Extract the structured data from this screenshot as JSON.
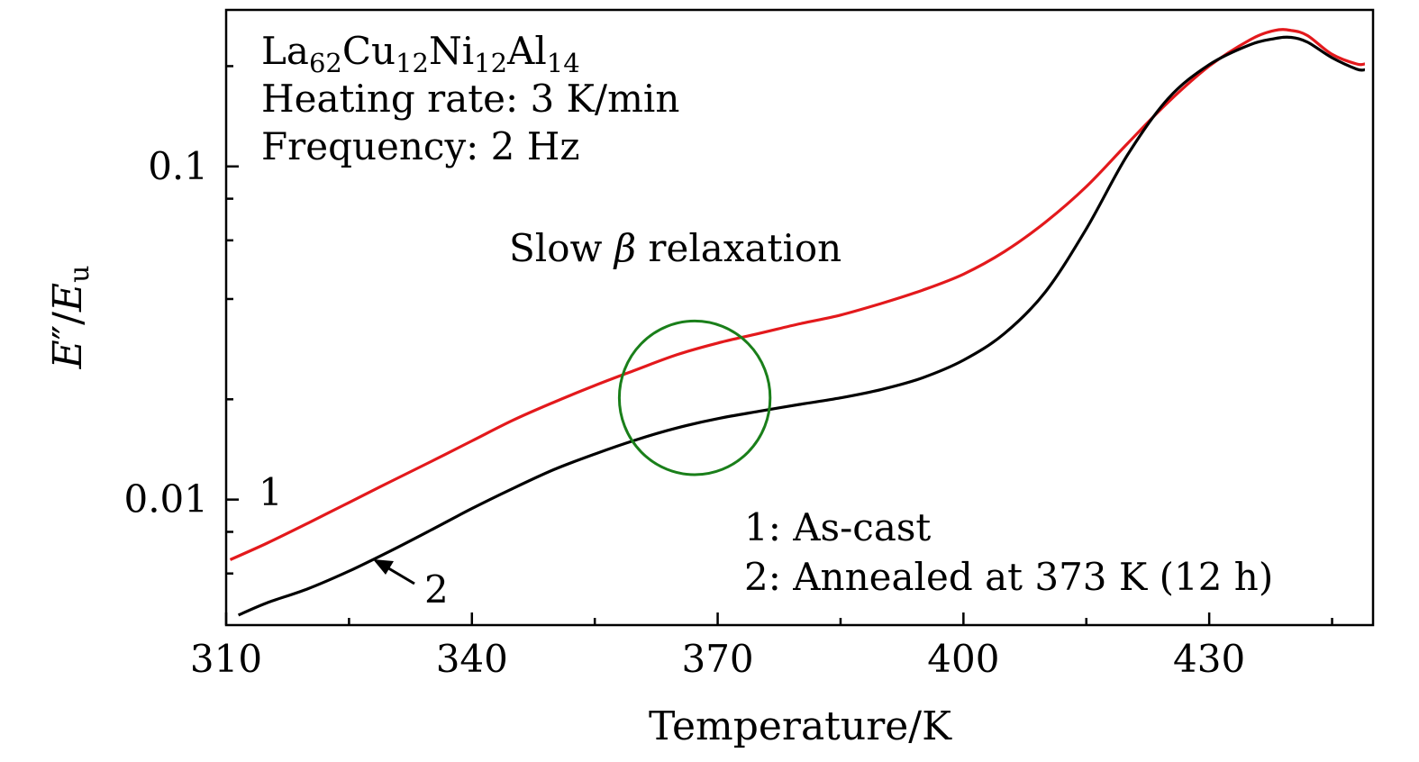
{
  "chart_data": {
    "type": "line",
    "title": "",
    "xlabel": "Temperature/K",
    "ylabel": {
      "main": "E",
      "prime": "″",
      "slash": "/",
      "sub_base": "E",
      "sub": "u"
    },
    "xlim": [
      310,
      450
    ],
    "ylim": [
      0.0042,
      0.295
    ],
    "yscale": "log",
    "x_ticks": [
      310,
      340,
      370,
      400,
      430
    ],
    "y_ticks": [
      {
        "value": 0.01,
        "label": "0.01"
      },
      {
        "value": 0.1,
        "label": "0.1"
      }
    ],
    "series": [
      {
        "name": "1",
        "legend": "1: As-cast",
        "color": "#e3191c",
        "x": [
          310.5,
          315,
          320,
          325,
          330,
          335,
          340,
          345,
          350,
          355,
          360,
          365,
          370,
          375,
          380,
          385,
          390,
          395,
          400,
          405,
          410,
          415,
          420,
          425,
          430,
          435,
          438,
          440,
          442,
          445,
          448,
          449
        ],
        "y": [
          0.0066,
          0.0074,
          0.0085,
          0.0098,
          0.0113,
          0.013,
          0.015,
          0.0173,
          0.0196,
          0.022,
          0.0245,
          0.0272,
          0.0295,
          0.0315,
          0.0337,
          0.0358,
          0.0388,
          0.0425,
          0.0475,
          0.0555,
          0.068,
          0.087,
          0.117,
          0.156,
          0.2,
          0.24,
          0.256,
          0.256,
          0.247,
          0.217,
          0.203,
          0.203
        ]
      },
      {
        "name": "2",
        "legend": "2: Annealed at 373 K (12 h)",
        "color": "#000000",
        "x": [
          311.5,
          315,
          320,
          325,
          330,
          335,
          340,
          345,
          350,
          355,
          360,
          365,
          370,
          375,
          380,
          385,
          390,
          395,
          400,
          405,
          410,
          415,
          420,
          425,
          430,
          435,
          438,
          440,
          442,
          445,
          448,
          449
        ],
        "y": [
          0.0045,
          0.0049,
          0.0054,
          0.0061,
          0.007,
          0.0081,
          0.0094,
          0.0108,
          0.0123,
          0.0137,
          0.0151,
          0.0164,
          0.0175,
          0.0184,
          0.0193,
          0.0202,
          0.0214,
          0.0232,
          0.0262,
          0.0315,
          0.042,
          0.065,
          0.108,
          0.16,
          0.202,
          0.232,
          0.242,
          0.244,
          0.236,
          0.212,
          0.196,
          0.195
        ]
      }
    ],
    "series_labels": [
      "1",
      "2"
    ],
    "info_lines": {
      "alloy": {
        "la": "La",
        "la_sub": "62",
        "cu": "Cu",
        "cu_sub": "12",
        "ni": "Ni",
        "ni_sub": "12",
        "al": "Al",
        "al_sub": "14"
      },
      "heating_rate": "Heating rate: 3 K/min",
      "frequency": "Frequency: 2 Hz"
    },
    "annotation": {
      "text_before": "Slow ",
      "beta": "β",
      "text_after": " relaxation",
      "color": "#1a7f1a",
      "circle_center": {
        "x": 367.2,
        "y": 0.0202
      },
      "circle_radius_temperature_units": 9.2
    },
    "arrow_target": {
      "x": 327.8,
      "y": 0.0059
    },
    "legend_entries": [
      "1: As-cast",
      "2: Annealed at 373 K (12 h)"
    ]
  }
}
